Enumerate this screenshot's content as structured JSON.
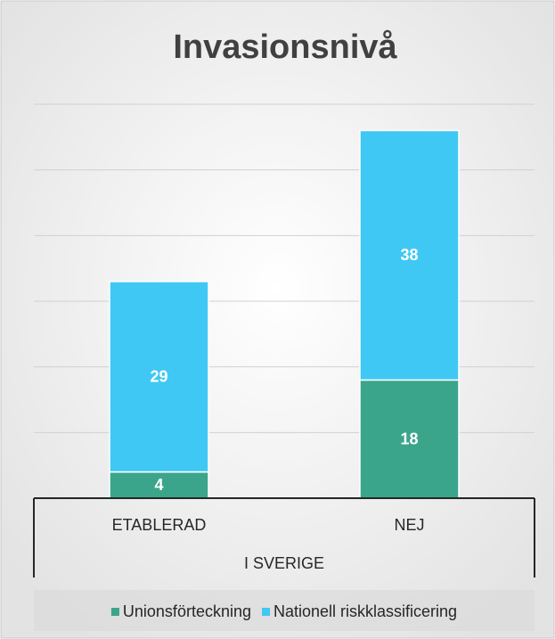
{
  "chart_data": {
    "type": "stacked_bar",
    "title": "Invasionsnivå",
    "categories": [
      "ETABLERAD",
      "NEJ"
    ],
    "group_label": "I SVERIGE",
    "series": [
      {
        "name": "Unionsförteckning",
        "color": "#3aa58a",
        "values": [
          4,
          18
        ]
      },
      {
        "name": "Nationell riskklassificering",
        "color": "#40c8f4",
        "values": [
          29,
          38
        ]
      }
    ],
    "ylim": [
      0,
      60
    ],
    "yticks": [
      10,
      20,
      30,
      40,
      50,
      60
    ],
    "grid": true,
    "legend": "bottom"
  }
}
